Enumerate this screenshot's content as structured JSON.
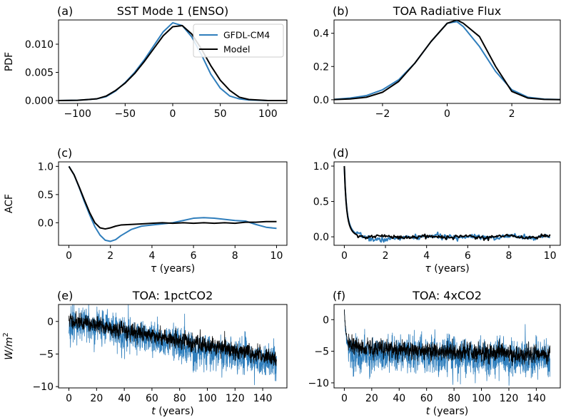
{
  "colors": {
    "gfdl": "#2f7ebc",
    "model": "#000000"
  },
  "chart_data": [
    {
      "id": "a",
      "type": "line",
      "panel_label": "(a)",
      "title": "SST Mode 1 (ENSO)",
      "xlabel": "",
      "ylabel": "PDF",
      "xlim": [
        -120,
        120
      ],
      "ylim": [
        -0.0005,
        0.0143
      ],
      "xticks": [
        -100,
        -50,
        0,
        50,
        100
      ],
      "xticklabels": [
        "−100",
        "−50",
        "0",
        "50",
        "100"
      ],
      "yticks": [
        0.0,
        0.005,
        0.01
      ],
      "yticklabels": [
        "0.000",
        "0.005",
        "0.010"
      ],
      "legend": {
        "position": "top-right",
        "entries": [
          "GFDL-CM4",
          "Model"
        ]
      },
      "series": [
        {
          "name": "GFDL-CM4",
          "x": [
            -120,
            -100,
            -80,
            -70,
            -60,
            -50,
            -40,
            -30,
            -20,
            -10,
            0,
            10,
            20,
            30,
            40,
            50,
            60,
            70,
            80,
            100,
            120
          ],
          "y": [
            0,
            5e-05,
            0.0003,
            0.0007,
            0.0017,
            0.0032,
            0.005,
            0.0072,
            0.0097,
            0.0122,
            0.0138,
            0.0133,
            0.0113,
            0.0082,
            0.0047,
            0.0022,
            0.0008,
            0.0003,
            0.0001,
            0,
            0
          ]
        },
        {
          "name": "Model",
          "x": [
            -120,
            -100,
            -80,
            -70,
            -60,
            -50,
            -40,
            -30,
            -20,
            -10,
            0,
            10,
            20,
            30,
            40,
            50,
            60,
            70,
            80,
            100,
            120
          ],
          "y": [
            0,
            5e-05,
            0.0003,
            0.0008,
            0.0018,
            0.0031,
            0.0048,
            0.0069,
            0.0092,
            0.0115,
            0.0131,
            0.0133,
            0.0118,
            0.0092,
            0.0062,
            0.0036,
            0.0018,
            0.0006,
            0.0002,
            0,
            0
          ]
        }
      ]
    },
    {
      "id": "b",
      "type": "line",
      "panel_label": "(b)",
      "title": "TOA Radiative Flux",
      "xlabel": "",
      "ylabel": "",
      "xlim": [
        -3.5,
        3.5
      ],
      "ylim": [
        -0.022,
        0.48
      ],
      "xticks": [
        -2,
        0,
        2
      ],
      "xticklabels": [
        "−2",
        "0",
        "2"
      ],
      "yticks": [
        0.0,
        0.2,
        0.4
      ],
      "yticklabels": [
        "0.0",
        "0.2",
        "0.4"
      ],
      "series": [
        {
          "name": "GFDL-CM4",
          "x": [
            -3.5,
            -3,
            -2.5,
            -2,
            -1.5,
            -1,
            -0.5,
            0,
            0.3,
            0.5,
            1,
            1.5,
            2,
            2.5,
            3,
            3.5
          ],
          "y": [
            0.002,
            0.01,
            0.025,
            0.06,
            0.12,
            0.22,
            0.35,
            0.46,
            0.47,
            0.44,
            0.32,
            0.17,
            0.06,
            0.015,
            0.004,
            0.001
          ]
        },
        {
          "name": "Model",
          "x": [
            -3.5,
            -3,
            -2.5,
            -2,
            -1.5,
            -1,
            -0.5,
            0,
            0.3,
            0.5,
            1,
            1.5,
            2,
            2.5,
            3,
            3.5
          ],
          "y": [
            0.001,
            0.005,
            0.015,
            0.045,
            0.11,
            0.22,
            0.35,
            0.46,
            0.48,
            0.46,
            0.38,
            0.2,
            0.05,
            0.01,
            0.002,
            0.0005
          ]
        }
      ]
    },
    {
      "id": "c",
      "type": "line",
      "panel_label": "(c)",
      "title": "",
      "xlabel": "τ (years)",
      "ylabel": "ACF",
      "xlim": [
        -0.5,
        10.5
      ],
      "ylim": [
        -0.4,
        1.08
      ],
      "xticks": [
        0,
        2,
        4,
        6,
        8,
        10
      ],
      "xticklabels": [
        "0",
        "2",
        "4",
        "6",
        "8",
        "10"
      ],
      "yticks": [
        0.0,
        0.5,
        1.0
      ],
      "yticklabels": [
        "0.0",
        "0.5",
        "1.0"
      ],
      "series": [
        {
          "name": "GFDL-CM4",
          "x": [
            0,
            0.25,
            0.5,
            0.75,
            1,
            1.25,
            1.5,
            1.75,
            2,
            2.25,
            2.5,
            3,
            3.5,
            4,
            4.5,
            5,
            5.5,
            6,
            6.5,
            7,
            7.5,
            8,
            8.5,
            9,
            9.5,
            10
          ],
          "y": [
            1,
            0.85,
            0.62,
            0.37,
            0.14,
            -0.07,
            -0.22,
            -0.31,
            -0.33,
            -0.3,
            -0.23,
            -0.12,
            -0.06,
            -0.04,
            -0.02,
            0,
            0.04,
            0.08,
            0.09,
            0.08,
            0.06,
            0.04,
            0.03,
            -0.03,
            -0.08,
            -0.1
          ]
        },
        {
          "name": "Model",
          "x": [
            0,
            0.25,
            0.5,
            0.75,
            1,
            1.25,
            1.5,
            1.75,
            2,
            2.25,
            2.5,
            3,
            3.5,
            4,
            4.5,
            5,
            5.5,
            6,
            6.5,
            7,
            7.5,
            8,
            8.5,
            9,
            9.5,
            10
          ],
          "y": [
            1,
            0.85,
            0.63,
            0.4,
            0.18,
            0,
            -0.09,
            -0.11,
            -0.09,
            -0.06,
            -0.04,
            -0.03,
            -0.02,
            -0.01,
            0,
            -0.01,
            0,
            -0.01,
            0,
            -0.01,
            0,
            -0.01,
            0.01,
            0.01,
            0.02,
            0.02
          ]
        }
      ]
    },
    {
      "id": "d",
      "type": "line",
      "panel_label": "(d)",
      "title": "",
      "xlabel": "τ (years)",
      "ylabel": "",
      "xlim": [
        -0.5,
        10.5
      ],
      "ylim": [
        -0.12,
        1.06
      ],
      "xticks": [
        0,
        2,
        4,
        6,
        8,
        10
      ],
      "xticklabels": [
        "0",
        "2",
        "4",
        "6",
        "8",
        "10"
      ],
      "yticks": [
        0.0,
        0.5,
        1.0
      ],
      "yticklabels": [
        "0.0",
        "0.5",
        "1.0"
      ],
      "series": [
        {
          "name": "GFDL-CM4",
          "decay": [
            0.55,
            0.25
          ],
          "noise": 0.025,
          "seed": 7
        },
        {
          "name": "Model",
          "decay": [
            0.6,
            0.22
          ],
          "noise": 0.018,
          "seed": 21
        }
      ]
    },
    {
      "id": "e",
      "type": "line",
      "panel_label": "(e)",
      "title": "TOA: 1pctCO2",
      "xlabel": "t (years)",
      "ylabel": "W/m²",
      "xlim": [
        -7.5,
        157.5
      ],
      "ylim": [
        -10.2,
        2.6
      ],
      "xticks": [
        0,
        20,
        40,
        60,
        80,
        100,
        120,
        140
      ],
      "xticklabels": [
        "0",
        "20",
        "40",
        "60",
        "80",
        "100",
        "120",
        "140"
      ],
      "yticks": [
        -10,
        -5,
        0
      ],
      "yticklabels": [
        "−10",
        "−5",
        "0"
      ],
      "series": [
        {
          "name": "GFDL-CM4",
          "trend_start": 0,
          "trend_end": -6.5,
          "noise": 1.15,
          "seed": 3
        },
        {
          "name": "Model",
          "trend_start": 0.2,
          "trend_end": -5.6,
          "noise": 0.55,
          "seed": 11
        }
      ]
    },
    {
      "id": "f",
      "type": "line",
      "panel_label": "(f)",
      "title": "TOA: 4xCO2",
      "xlabel": "t (years)",
      "ylabel": "",
      "xlim": [
        -7.5,
        157.5
      ],
      "ylim": [
        -10.8,
        2.4
      ],
      "xticks": [
        0,
        20,
        40,
        60,
        80,
        100,
        120,
        140
      ],
      "xticklabels": [
        "0",
        "20",
        "40",
        "60",
        "80",
        "100",
        "120",
        "140"
      ],
      "yticks": [
        -10,
        -5,
        0
      ],
      "yticklabels": [
        "−10",
        "−5",
        "0"
      ],
      "series": [
        {
          "name": "GFDL-CM4",
          "initial": 1.6,
          "settle": -5.2,
          "settle_end": -6.3,
          "noise": 1.3,
          "seed": 5
        },
        {
          "name": "Model",
          "initial": 1.5,
          "settle": -4.4,
          "settle_end": -5.6,
          "noise": 0.6,
          "seed": 17
        }
      ]
    }
  ]
}
